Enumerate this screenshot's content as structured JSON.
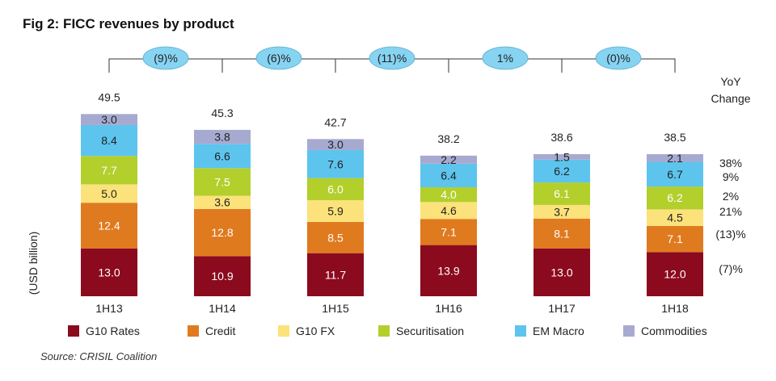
{
  "chart_data": {
    "type": "bar",
    "stacked": true,
    "title": "Fig 2: FICC revenues by product",
    "ylabel": "(USD billion)",
    "xlabel": "",
    "ylim": [
      0,
      55
    ],
    "grid": false,
    "legend_position": "bottom",
    "categories": [
      "1H13",
      "1H14",
      "1H15",
      "1H16",
      "1H17",
      "1H18"
    ],
    "series": [
      {
        "name": "G10 Rates",
        "color": "#8B0A1E",
        "label_color": "#ffffff",
        "values": [
          13.0,
          10.9,
          11.7,
          13.9,
          13.0,
          12.0
        ],
        "labels": [
          "13.0",
          "10.9",
          "11.7",
          "13.9",
          "13.0",
          "12.0"
        ]
      },
      {
        "name": "Credit",
        "color": "#E07A1F",
        "label_color": "#ffffff",
        "values": [
          12.4,
          12.8,
          8.5,
          7.1,
          8.1,
          7.1
        ],
        "labels": [
          "12.4",
          "12.8",
          "8.5",
          "7.1",
          "8.1",
          "7.1"
        ]
      },
      {
        "name": "G10 FX",
        "color": "#FCE27A",
        "label_color": "#222222",
        "values": [
          5.0,
          3.6,
          5.9,
          4.6,
          3.7,
          4.5
        ],
        "labels": [
          "5.0",
          "3.6",
          "5.9",
          "4.6",
          "3.7",
          "4.5"
        ]
      },
      {
        "name": "Securitisation",
        "color": "#B2CF2C",
        "label_color": "#ffffff",
        "values": [
          7.7,
          7.5,
          6.0,
          4.0,
          6.1,
          6.2
        ],
        "labels": [
          "7.7",
          "7.5",
          "6.0",
          "4.0",
          "6.1",
          "6.2"
        ]
      },
      {
        "name": "EM Macro",
        "color": "#5DC4EE",
        "label_color": "#222222",
        "values": [
          8.4,
          6.6,
          7.6,
          6.4,
          6.2,
          6.7
        ],
        "labels": [
          "8.4",
          "6.6",
          "7.6",
          "6.4",
          "6.2",
          "6.7"
        ]
      },
      {
        "name": "Commodities",
        "color": "#A7AAD0",
        "label_color": "#222222",
        "values": [
          3.0,
          3.8,
          3.0,
          2.2,
          1.5,
          2.1
        ],
        "labels": [
          "3.0",
          "3.8",
          "3.0",
          "2.2",
          "1.5",
          "2.1"
        ]
      }
    ],
    "totals": [
      "49.5",
      "45.3",
      "42.7",
      "38.2",
      "38.6",
      "38.5"
    ],
    "period_changes": [
      "(9)%",
      "(6)%",
      "(11)%",
      "1%",
      "(0)%"
    ],
    "yoy_header": [
      "YoY",
      "Change"
    ],
    "yoy_changes": [
      "38%",
      "9%",
      "2%",
      "21%",
      "(13)%",
      "(7)%"
    ],
    "bubble_color": "#86D3F2",
    "source": "Source: CRISIL Coalition"
  }
}
